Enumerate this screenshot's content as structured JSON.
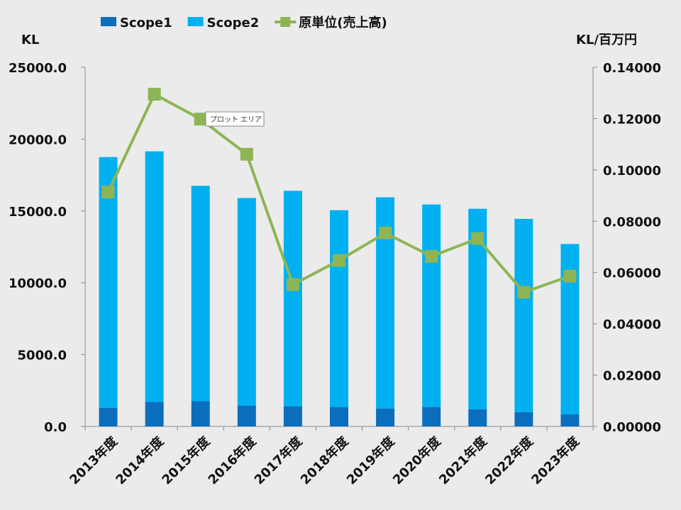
{
  "chart_data": {
    "type": "bar",
    "stacked": true,
    "categories": [
      "2013年度",
      "2014年度",
      "2015年度",
      "2016年度",
      "2017年度",
      "2018年度",
      "2019年度",
      "2020年度",
      "2021年度",
      "2022年度",
      "2023年度"
    ],
    "series": [
      {
        "name": "Scope1",
        "type": "bar",
        "axis": "left",
        "color": "#0a6ebd",
        "values": [
          1300,
          1700,
          1750,
          1450,
          1400,
          1350,
          1250,
          1350,
          1200,
          1000,
          850
        ]
      },
      {
        "name": "Scope2",
        "type": "bar",
        "axis": "left",
        "color": "#00b0f0",
        "values": [
          17450,
          17450,
          15000,
          14450,
          15000,
          13700,
          14700,
          14100,
          13950,
          13450,
          11850
        ]
      },
      {
        "name": "原単位(売上高)",
        "type": "line",
        "axis": "right",
        "color": "#8db555",
        "values": [
          0.0914,
          0.1295,
          0.1198,
          0.1061,
          0.0553,
          0.0647,
          0.0754,
          0.0663,
          0.0732,
          0.0523,
          0.0586
        ]
      }
    ],
    "yleft_label": "KL",
    "yright_label": "KL/百万円",
    "yleft_lim": [
      0,
      25000
    ],
    "yright_lim": [
      0,
      0.14
    ],
    "yleft_ticks": [
      "0.0",
      "5000.0",
      "10000.0",
      "15000.0",
      "20000.0",
      "25000.0"
    ],
    "yright_ticks": [
      "0.00000",
      "0.02000",
      "0.04000",
      "0.06000",
      "0.08000",
      "0.10000",
      "0.12000",
      "0.14000"
    ],
    "legend_position": "top",
    "grid": false
  },
  "tooltip": {
    "text": "プロット エリア"
  }
}
